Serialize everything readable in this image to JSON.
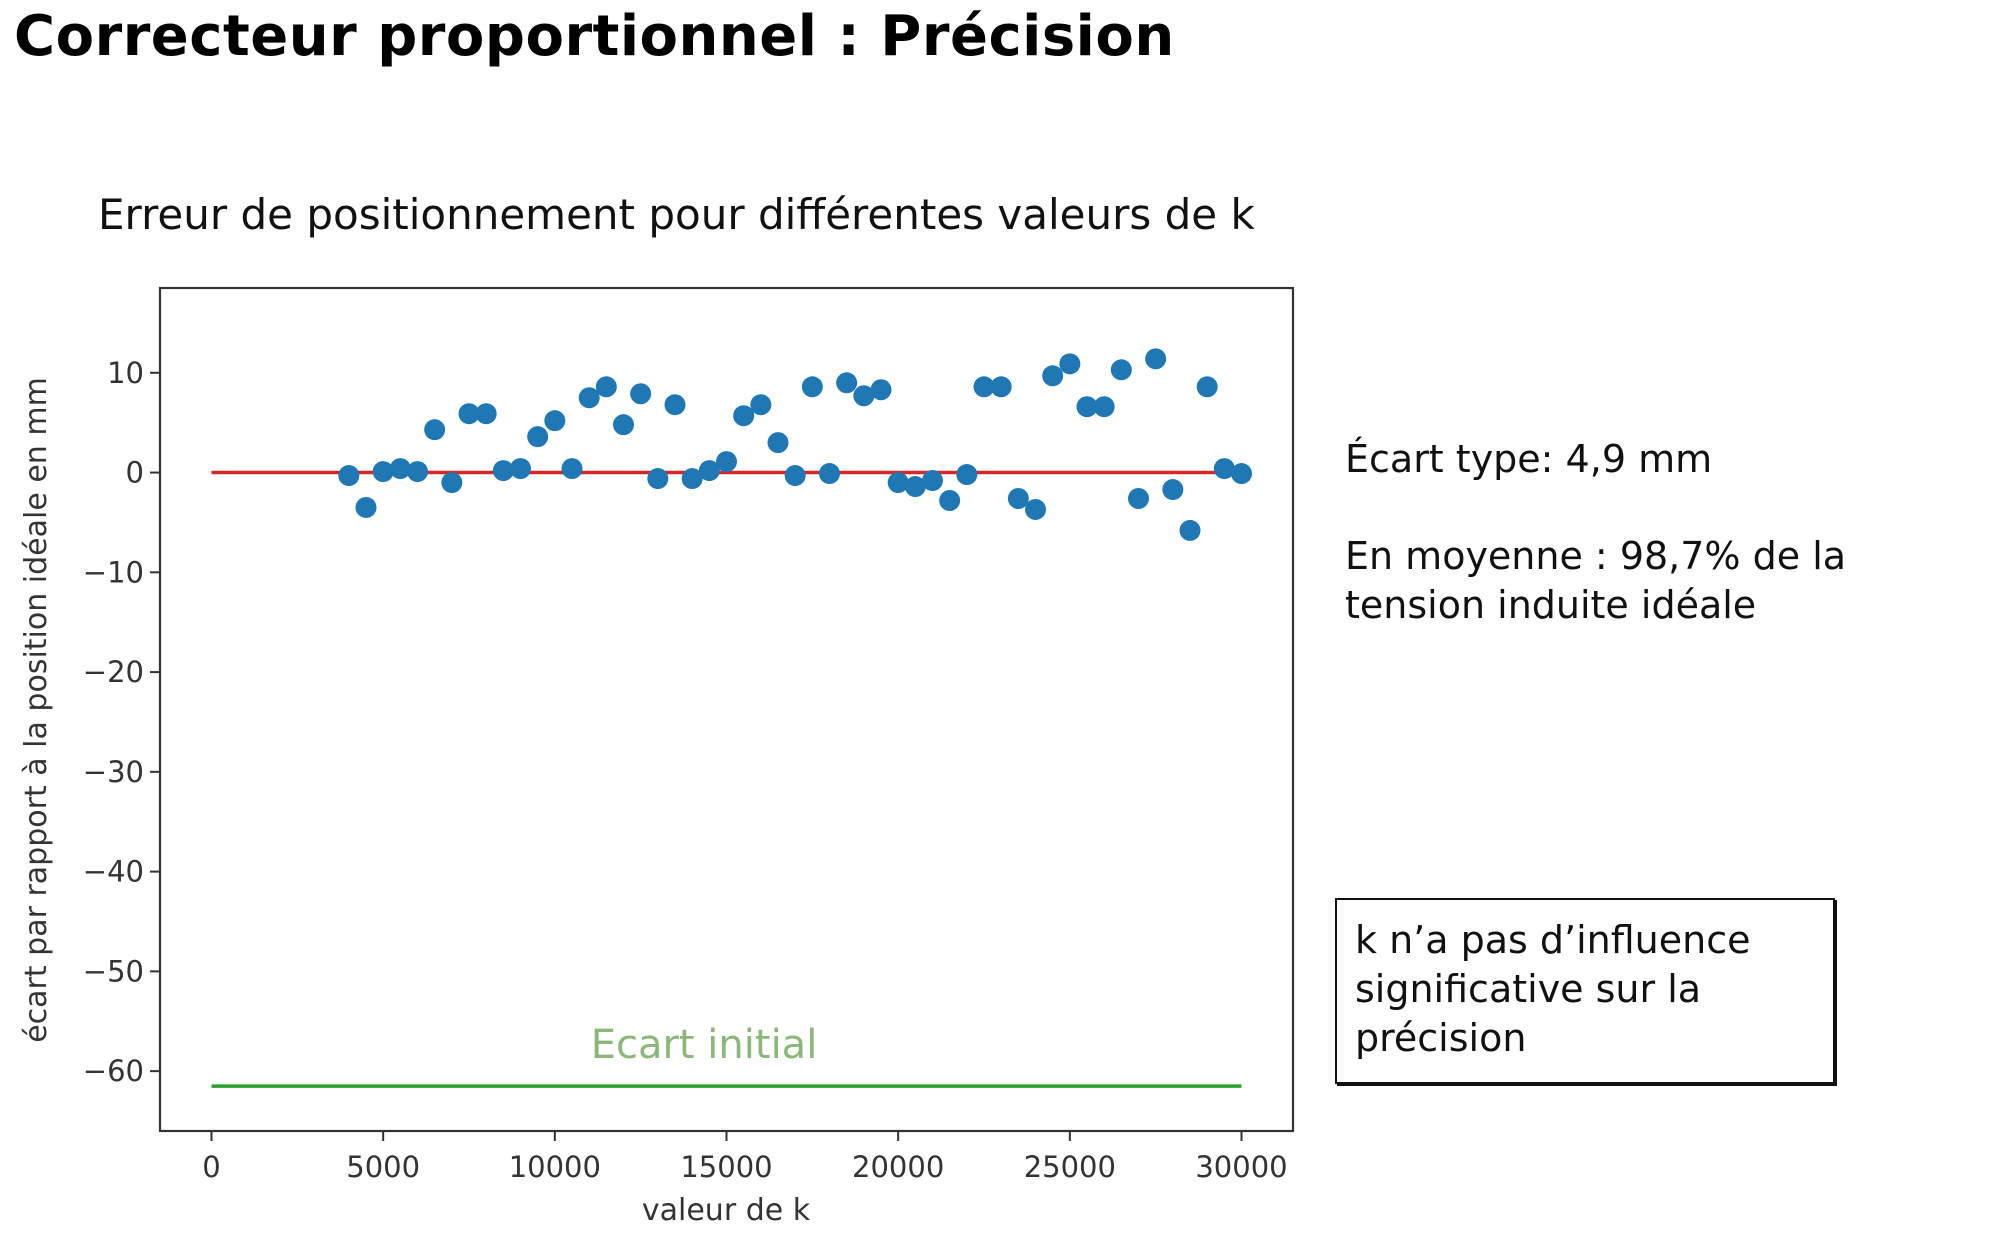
{
  "slide": {
    "title": "Correcteur proportionnel : Précision"
  },
  "stats": {
    "std_line": "Écart type: 4,9 mm",
    "mean_line1": "En moyenne : 98,7% de la",
    "mean_line2": "tension induite idéale"
  },
  "conclusion": {
    "line1": "k n’a pas d’influence",
    "line2": "significative sur la",
    "line3": "précision"
  },
  "colors": {
    "points": "#1f77b4",
    "ideal_line": "#d62728",
    "initial_line": "#2ca02c",
    "initial_label": "#8bb87a"
  },
  "chart_data": {
    "type": "scatter",
    "title": "Erreur de positionnement pour différentes valeurs de k",
    "xlabel": "valeur de k",
    "ylabel": "écart par rapport à la position idéale en mm",
    "xlim": [
      -1500,
      31500
    ],
    "ylim": [
      -66,
      18.5
    ],
    "xticks": [
      0,
      5000,
      10000,
      15000,
      20000,
      25000,
      30000
    ],
    "yticks": [
      10,
      0,
      -10,
      -20,
      -30,
      -40,
      -50,
      -60
    ],
    "xtick_labels": [
      "0",
      "5000",
      "10000",
      "15000",
      "20000",
      "25000",
      "30000"
    ],
    "ytick_labels": [
      "10",
      "0",
      "−10",
      "−20",
      "−30",
      "−40",
      "−50",
      "−60"
    ],
    "grid": false,
    "annotation": "Ecart initial",
    "reference_lines": [
      {
        "y": 0,
        "x": [
          0,
          30000
        ],
        "color": "#d62728"
      },
      {
        "y": -61.5,
        "x": [
          0,
          30000
        ],
        "color": "#2ca02c"
      }
    ],
    "points": [
      [
        4000,
        -0.3
      ],
      [
        4500,
        -3.5
      ],
      [
        5000,
        0.1
      ],
      [
        5500,
        0.4
      ],
      [
        6000,
        0.1
      ],
      [
        6500,
        4.3
      ],
      [
        7000,
        -1.0
      ],
      [
        7500,
        5.9
      ],
      [
        8000,
        5.9
      ],
      [
        8500,
        0.2
      ],
      [
        9000,
        0.4
      ],
      [
        9500,
        3.6
      ],
      [
        10000,
        5.2
      ],
      [
        10500,
        0.4
      ],
      [
        11000,
        7.5
      ],
      [
        11500,
        8.6
      ],
      [
        12000,
        4.8
      ],
      [
        12500,
        7.9
      ],
      [
        13000,
        -0.6
      ],
      [
        13500,
        6.8
      ],
      [
        14000,
        -0.6
      ],
      [
        14500,
        0.2
      ],
      [
        15000,
        1.1
      ],
      [
        15500,
        5.7
      ],
      [
        16000,
        6.8
      ],
      [
        16500,
        3.0
      ],
      [
        17000,
        -0.3
      ],
      [
        17500,
        8.6
      ],
      [
        18000,
        -0.1
      ],
      [
        18500,
        9.0
      ],
      [
        19000,
        7.7
      ],
      [
        19500,
        8.3
      ],
      [
        20000,
        -1.0
      ],
      [
        20500,
        -1.4
      ],
      [
        21000,
        -0.8
      ],
      [
        21500,
        -2.8
      ],
      [
        22000,
        -0.2
      ],
      [
        22500,
        8.6
      ],
      [
        23000,
        8.6
      ],
      [
        23500,
        -2.6
      ],
      [
        24000,
        -3.7
      ],
      [
        24500,
        9.7
      ],
      [
        25000,
        10.9
      ],
      [
        25500,
        6.6
      ],
      [
        26000,
        6.6
      ],
      [
        26500,
        10.3
      ],
      [
        27000,
        -2.6
      ],
      [
        27500,
        11.4
      ],
      [
        28000,
        -1.7
      ],
      [
        28500,
        -5.8
      ],
      [
        29000,
        8.6
      ],
      [
        29500,
        0.4
      ],
      [
        30000,
        -0.1
      ]
    ]
  }
}
